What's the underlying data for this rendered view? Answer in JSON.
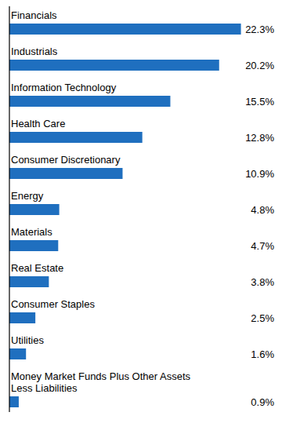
{
  "chart_data": {
    "type": "bar",
    "orientation": "horizontal",
    "categories": [
      "Financials",
      "Industrials",
      "Information Technology",
      "Health Care",
      "Consumer Discretionary",
      "Energy",
      "Materials",
      "Real Estate",
      "Consumer Staples",
      "Utilities",
      "Money Market Funds Plus Other Assets\nLess Liabilities"
    ],
    "values": [
      22.3,
      20.2,
      15.5,
      12.8,
      10.9,
      4.8,
      4.7,
      3.8,
      2.5,
      1.6,
      0.9
    ],
    "value_labels": [
      "22.3%",
      "20.2%",
      "15.5%",
      "12.8%",
      "10.9%",
      "4.8%",
      "4.7%",
      "3.8%",
      "2.5%",
      "1.6%",
      "0.9%"
    ],
    "color": "#1F6FBF",
    "xlim": [
      0,
      25.5
    ],
    "data_labels": true,
    "tick_labels": false,
    "grid": false
  }
}
